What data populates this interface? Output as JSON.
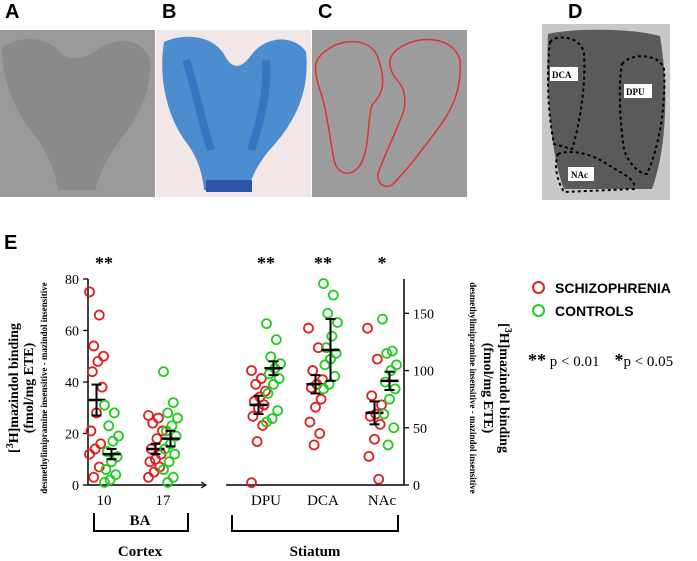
{
  "panels": {
    "a_label": "A",
    "b_label": "B",
    "c_label": "C",
    "d_label": "D",
    "e_label": "E"
  },
  "panel_d": {
    "region_dca": "DCA",
    "region_dpu": "DPU",
    "region_nac": "NAc"
  },
  "colors": {
    "schizophrenia": "#e02020",
    "controls": "#22cc22",
    "outline_c": "#e03030"
  },
  "legend": {
    "schizophrenia": "SCHIZOPHRENIA",
    "controls": "CONTROLS"
  },
  "significance": {
    "double": "**",
    "double_text": "p < 0.01",
    "single": "*",
    "single_text": "p < 0.05"
  },
  "chart_data": {
    "type": "scatter",
    "left_axis": {
      "label_main": "[3H]mazindol binding",
      "label_sub": "desmethylimipramine insensitive - mazindol  insensitive",
      "unit": "(fmol/mg ETE)",
      "ylim": [
        0,
        80
      ],
      "ticks": [
        "0",
        "20",
        "40",
        "60",
        "80"
      ]
    },
    "right_axis": {
      "label_main": "[3H]mazindol binding",
      "label_sub": "desmethylimipramine insensitive - mazindol  insensitive",
      "unit": "(fmol/mg ETE)",
      "ylim": [
        0,
        180
      ],
      "ticks": [
        "0",
        "50",
        "100",
        "150"
      ]
    },
    "left_group": {
      "categories": [
        "10",
        "17"
      ],
      "bracket": "BA",
      "region": "Cortex"
    },
    "right_group": {
      "categories": [
        "DPU",
        "DCA",
        "NAc"
      ],
      "region": "Stiatum"
    },
    "stars": [
      "**",
      "",
      "**",
      "**",
      "*"
    ],
    "series": [
      {
        "name": "SCHIZOPHRENIA",
        "groups": [
          {
            "category": "10",
            "axis": "left",
            "mean": 33,
            "sem": 6,
            "values": [
              75,
              66,
              54,
              50,
              48,
              44,
              38,
              28,
              21,
              16,
              14,
              12,
              7,
              3
            ]
          },
          {
            "category": "17",
            "axis": "left",
            "mean": 14,
            "sem": 2,
            "values": [
              27,
              26,
              24,
              21,
              18,
              14,
              12,
              10,
              9,
              7,
              5,
              3
            ]
          },
          {
            "category": "DPU",
            "axis": "right",
            "mean": 70,
            "sem": 8,
            "values": [
              100,
              93,
              88,
              82,
              77,
              73,
              70,
              67,
              60,
              52,
              38,
              2
            ]
          },
          {
            "category": "DCA",
            "axis": "right",
            "mean": 88,
            "sem": 8,
            "values": [
              137,
              120,
              100,
              92,
              88,
              85,
              75,
              68,
              55,
              45,
              35
            ]
          },
          {
            "category": "NAc",
            "axis": "right",
            "mean": 63,
            "sem": 10,
            "values": [
              137,
              110,
              78,
              70,
              62,
              60,
              53,
              40,
              25,
              5
            ]
          }
        ]
      },
      {
        "name": "CONTROLS",
        "groups": [
          {
            "category": "10",
            "axis": "left",
            "mean": 12,
            "sem": 2,
            "values": [
              31,
              28,
              23,
              19,
              17,
              13,
              11,
              9,
              6,
              4,
              2,
              1
            ]
          },
          {
            "category": "17",
            "axis": "left",
            "mean": 18,
            "sem": 3,
            "values": [
              44,
              32,
              28,
              26,
              23,
              21,
              19,
              16,
              14,
              12,
              9,
              6,
              3,
              1
            ]
          },
          {
            "category": "DPU",
            "axis": "right",
            "mean": 102,
            "sem": 6,
            "values": [
              141,
              127,
              112,
              106,
              102,
              97,
              93,
              88,
              80,
              65,
              58,
              55
            ]
          },
          {
            "category": "DCA",
            "axis": "right",
            "mean": 118,
            "sem": 27,
            "values": [
              176,
              166,
              150,
              142,
              130,
              120,
              115,
              110,
              105,
              95,
              88,
              84
            ]
          },
          {
            "category": "NAc",
            "axis": "right",
            "mean": 91,
            "sem": 8,
            "values": [
              145,
              117,
              115,
              105,
              100,
              90,
              84,
              75,
              62,
              50,
              35
            ]
          }
        ]
      }
    ]
  }
}
